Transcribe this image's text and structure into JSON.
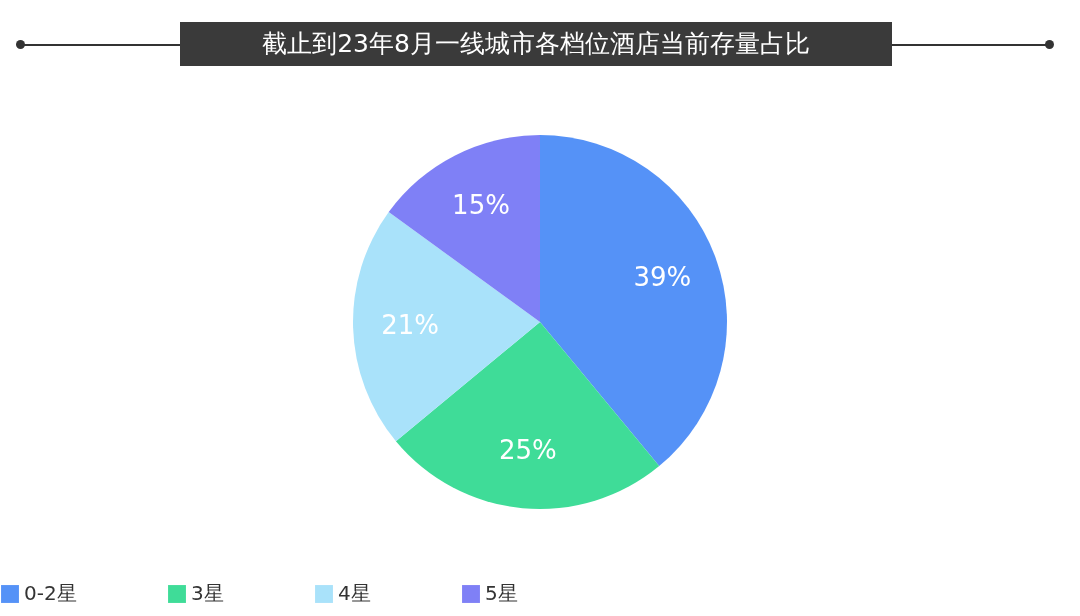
{
  "chart_data": {
    "type": "pie",
    "title": "截止到23年8月一线城市各档位酒店当前存量占比",
    "categories": [
      "0-2星",
      "3星",
      "4星",
      "5星"
    ],
    "values": [
      39,
      25,
      21,
      15
    ],
    "colors": [
      "#5592f7",
      "#3fdc98",
      "#a9e2fa",
      "#7f80f6"
    ],
    "value_labels": [
      "39%",
      "25%",
      "21%",
      "15%"
    ],
    "legend": "bottom"
  }
}
